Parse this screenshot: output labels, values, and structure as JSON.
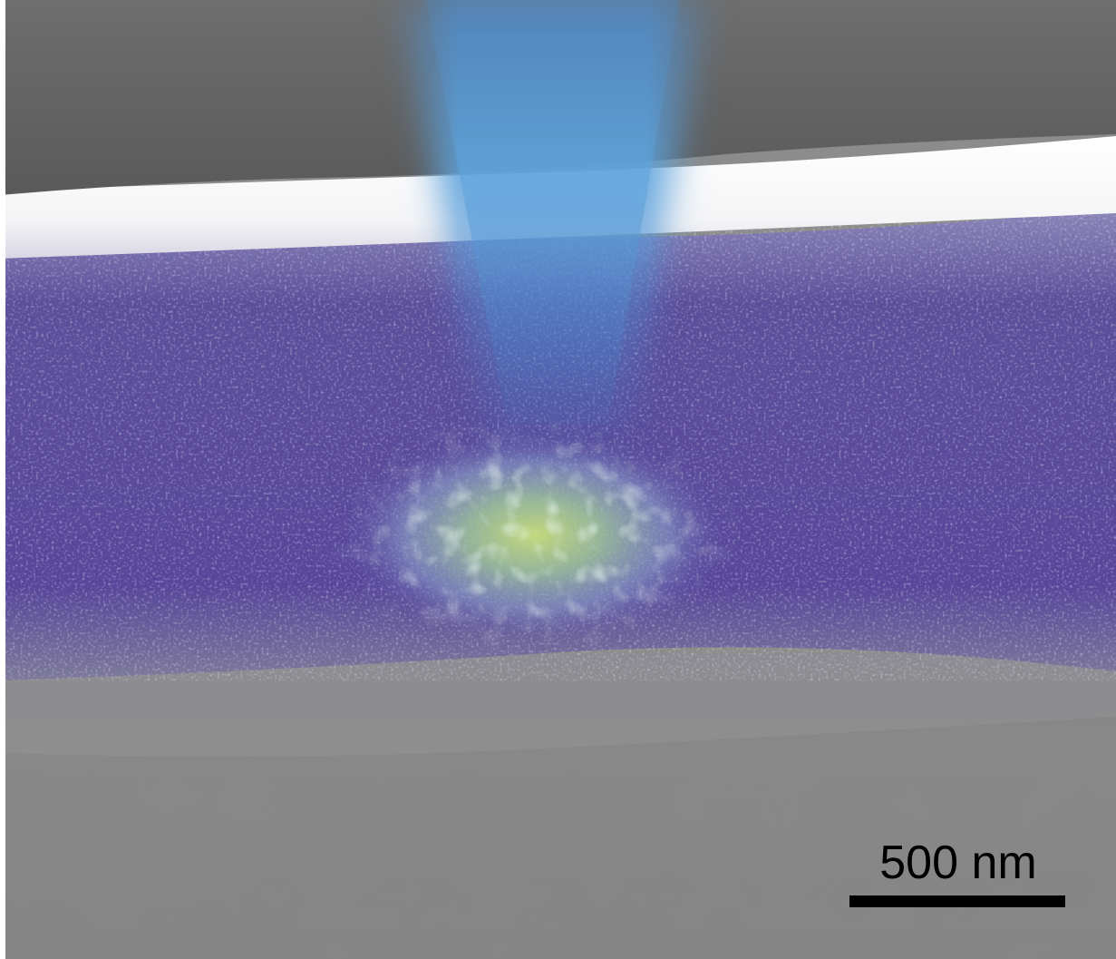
{
  "scale_bar": {
    "label": "500 nm"
  }
}
